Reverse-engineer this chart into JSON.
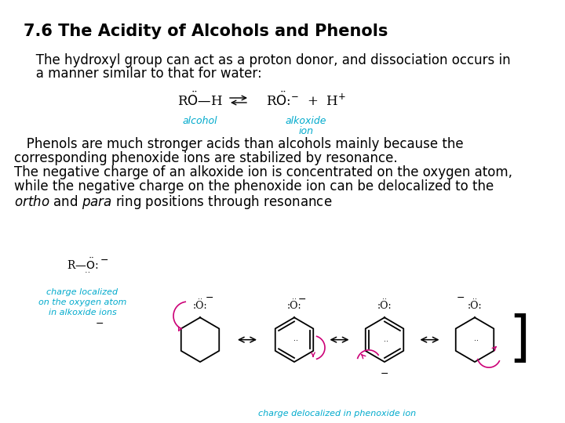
{
  "title": "7.6 The Acidity of Alcohols and Phenols",
  "title_fontsize": 15,
  "background_color": "#ffffff",
  "text_color": "#000000",
  "cyan_color": "#00aacc",
  "magenta_color": "#cc0077",
  "paragraph1_line1": "   The hydroxyl group can act as a proton donor, and dissociation occurs in",
  "paragraph1_line2": "   a manner similar to that for water:",
  "paragraph2_line1": "   Phenols are much stronger acids than alcohols mainly because the",
  "paragraph2_line2": "corresponding phenoxide ions are stabilized by resonance.",
  "paragraph2_line3": "The negative charge of an alkoxide ion is concentrated on the oxygen atom,",
  "paragraph2_line4": "while the negative charge on the phenoxide ion can be delocalized to the",
  "paragraph2_line5": "ortho and para ring positions through resonance",
  "body_fontsize": 12,
  "cyan_label_fontsize": 8
}
